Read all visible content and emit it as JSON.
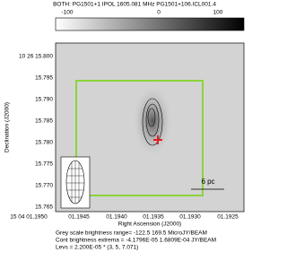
{
  "header": {
    "title": "BOTH: PG1501+1  IPOL  1605.081 MHz  PG1501+106.ICL001.4",
    "colorbar_labels": [
      "-100",
      "0",
      "100"
    ]
  },
  "axes": {
    "x_label": "Right Ascension (J2000)",
    "y_label": "Declination (J2000)",
    "x_tick_labels": [
      "15 04 01.1950",
      "01.1945",
      "01.1940",
      "01.1935",
      "01.1930",
      "01.1925"
    ],
    "y_tick_labels": [
      "10 26 15.800",
      "15.795",
      "15.790",
      "15.785",
      "15.780",
      "15.775",
      "15.770",
      "15.765"
    ]
  },
  "scale_bar": "6 pc",
  "footer": [
    "Grey scale brightness range= -122.5 169.5 MicroJY/BEAM",
    "Cont brightness extrema = -4.1796E-05 1.6809E-04 JY/BEAM",
    "Levs = 2.200E-05 * (3, 5, 7.071)"
  ]
}
